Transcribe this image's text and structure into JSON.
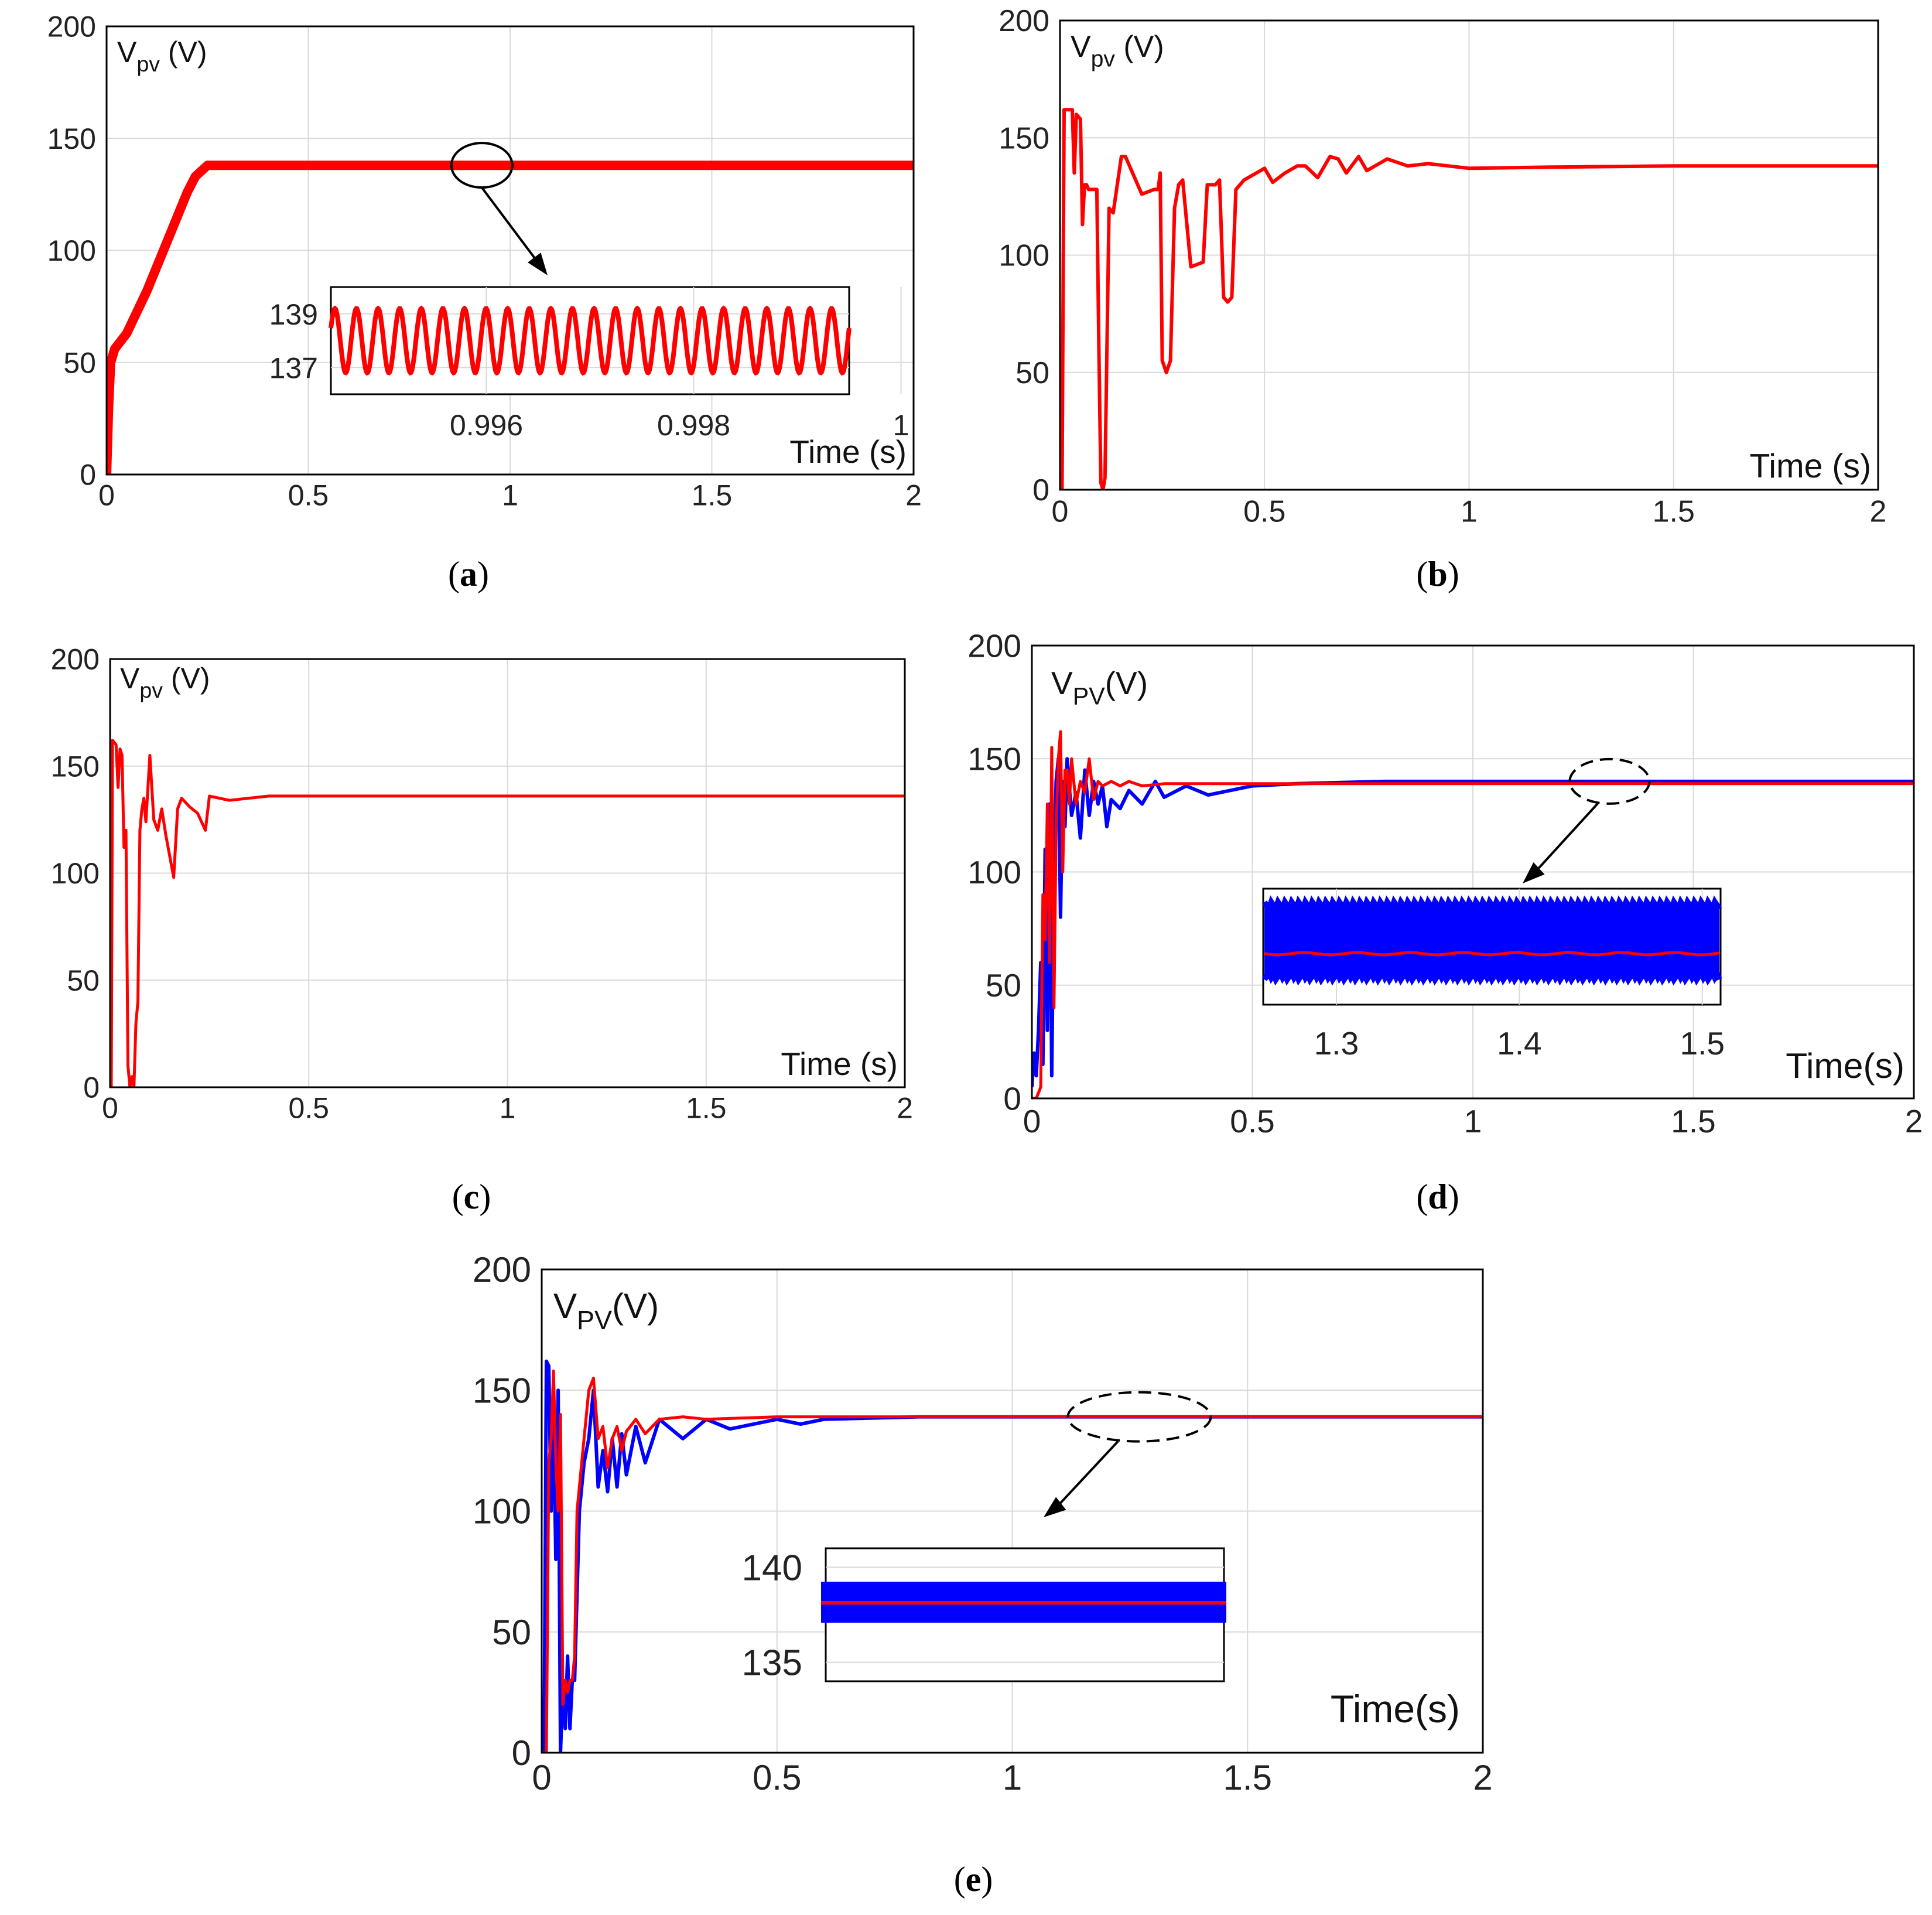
{
  "figure": {
    "colors": {
      "primary": "#ff0000",
      "secondary": "#0000ff",
      "grid": "#d9d9d9",
      "frame": "#000000"
    },
    "icons": [
      "zoom-ellipse-icon",
      "zoom-arrow-icon"
    ]
  },
  "chart_data": [
    {
      "id": "a",
      "type": "line",
      "caption": "(a)",
      "ylabel_main": "V",
      "ylabel_sub": "pv",
      "ylabel_unit": " (V)",
      "xlabel": "Time (s)",
      "xlim": [
        0,
        2
      ],
      "ylim": [
        0,
        200
      ],
      "xticks": [
        0,
        0.5,
        1,
        1.5,
        2
      ],
      "xtick_labels": [
        "0",
        "0.5",
        "1",
        "1.5",
        "2"
      ],
      "yticks": [
        0,
        50,
        100,
        150,
        200
      ],
      "ytick_labels": [
        "0",
        "50",
        "100",
        "150",
        "200"
      ],
      "grid": true,
      "series": [
        {
          "name": "Vpv",
          "color": "#ff0000",
          "x": [
            0,
            0.005,
            0.01,
            0.02,
            0.05,
            0.1,
            0.15,
            0.2,
            0.22,
            0.25,
            0.3,
            0.5,
            1.0,
            1.5,
            2.0
          ],
          "y": [
            0,
            30,
            50,
            56,
            63,
            82,
            104,
            126,
            133,
            138,
            138,
            138,
            138,
            138,
            138
          ]
        }
      ],
      "inset": {
        "xlim": [
          0.9945,
          0.9995
        ],
        "ylim": [
          136,
          140
        ],
        "xticks": [
          0.996,
          0.998,
          1
        ],
        "xtick_labels": [
          "0.996",
          "0.998",
          "1"
        ],
        "yticks": [
          137,
          139
        ],
        "ytick_labels": [
          "137",
          "139"
        ],
        "oscillation": {
          "center": 138,
          "amplitude": 1.2,
          "cycles": 24
        }
      },
      "zoom": {
        "x": 0.93,
        "y": 138
      }
    },
    {
      "id": "b",
      "type": "line",
      "caption": "(b)",
      "ylabel_main": "V",
      "ylabel_sub": "pv",
      "ylabel_unit": " (V)",
      "xlabel": "Time (s)",
      "xlim": [
        0,
        2
      ],
      "ylim": [
        0,
        200
      ],
      "xticks": [
        0,
        0.5,
        1,
        1.5,
        2
      ],
      "xtick_labels": [
        "0",
        "0.5",
        "1",
        "1.5",
        "2"
      ],
      "yticks": [
        0,
        50,
        100,
        150,
        200
      ],
      "ytick_labels": [
        "0",
        "50",
        "100",
        "150",
        "200"
      ],
      "grid": true,
      "series": [
        {
          "name": "Vpv",
          "color": "#ff0000",
          "x": [
            0,
            0.005,
            0.01,
            0.03,
            0.035,
            0.04,
            0.05,
            0.055,
            0.06,
            0.065,
            0.07,
            0.08,
            0.09,
            0.095,
            0.1,
            0.105,
            0.11,
            0.12,
            0.13,
            0.15,
            0.16,
            0.2,
            0.23,
            0.24,
            0.245,
            0.25,
            0.26,
            0.27,
            0.28,
            0.29,
            0.3,
            0.32,
            0.35,
            0.36,
            0.38,
            0.39,
            0.4,
            0.41,
            0.42,
            0.43,
            0.45,
            0.5,
            0.52,
            0.55,
            0.58,
            0.6,
            0.63,
            0.66,
            0.68,
            0.7,
            0.73,
            0.75,
            0.8,
            0.85,
            0.9,
            1.0,
            1.2,
            1.5,
            1.75,
            2.0
          ],
          "y": [
            0,
            0,
            162,
            162,
            135,
            160,
            158,
            113,
            130,
            130,
            128,
            128,
            128,
            60,
            3,
            0,
            5,
            120,
            118,
            142,
            142,
            126,
            128,
            128,
            135,
            55,
            50,
            55,
            120,
            130,
            132,
            95,
            97,
            130,
            130,
            132,
            82,
            80,
            82,
            128,
            132,
            137,
            131,
            135,
            138,
            138,
            133,
            142,
            141,
            135,
            142,
            136,
            141,
            138,
            139,
            137,
            137.5,
            138,
            138,
            138
          ]
        }
      ]
    },
    {
      "id": "c",
      "type": "line",
      "caption": "(c)",
      "ylabel_main": "V",
      "ylabel_sub": "pv",
      "ylabel_unit": " (V)",
      "xlabel": "Time (s)",
      "xlim": [
        0,
        2
      ],
      "ylim": [
        0,
        200
      ],
      "xticks": [
        0,
        0.5,
        1,
        1.5,
        2
      ],
      "xtick_labels": [
        "0",
        "0.5",
        "1",
        "1.5",
        "2"
      ],
      "yticks": [
        0,
        50,
        100,
        150,
        200
      ],
      "ytick_labels": [
        "0",
        "50",
        "100",
        "150",
        "200"
      ],
      "grid": true,
      "series": [
        {
          "name": "Vpv",
          "color": "#ff0000",
          "x": [
            0,
            0.003,
            0.006,
            0.015,
            0.02,
            0.025,
            0.03,
            0.035,
            0.04,
            0.045,
            0.05,
            0.055,
            0.06,
            0.065,
            0.07,
            0.075,
            0.08,
            0.085,
            0.09,
            0.1,
            0.11,
            0.12,
            0.13,
            0.14,
            0.15,
            0.16,
            0.17,
            0.18,
            0.2,
            0.22,
            0.24,
            0.25,
            0.3,
            0.4,
            0.5,
            0.7,
            1.0,
            1.5,
            2.0
          ],
          "y": [
            0,
            0,
            162,
            160,
            140,
            158,
            155,
            112,
            120,
            10,
            0,
            5,
            0,
            30,
            40,
            120,
            130,
            135,
            124,
            155,
            125,
            120,
            130,
            118,
            108,
            98,
            130,
            135,
            131,
            128,
            120,
            136,
            134,
            136,
            136,
            136,
            136,
            136,
            136
          ]
        }
      ]
    },
    {
      "id": "d",
      "type": "line",
      "caption": "(d)",
      "ylabel_main": "V",
      "ylabel_sub": "PV",
      "ylabel_unit": "(V)",
      "xlabel": "Time(s)",
      "xlim": [
        0,
        2
      ],
      "ylim": [
        0,
        200
      ],
      "xticks": [
        0,
        0.5,
        1,
        1.5,
        2
      ],
      "xtick_labels": [
        "0",
        "0.5",
        "1",
        "1.5",
        "2"
      ],
      "yticks": [
        0,
        50,
        100,
        150,
        200
      ],
      "ytick_labels": [
        "0",
        "50",
        "100",
        "150",
        "200"
      ],
      "grid": true,
      "series": [
        {
          "name": "Vpv (blue)",
          "color": "#0000ff",
          "x": [
            0,
            0.005,
            0.01,
            0.015,
            0.02,
            0.025,
            0.03,
            0.035,
            0.04,
            0.045,
            0.05,
            0.055,
            0.06,
            0.065,
            0.07,
            0.075,
            0.08,
            0.09,
            0.1,
            0.11,
            0.12,
            0.13,
            0.14,
            0.15,
            0.16,
            0.17,
            0.18,
            0.2,
            0.22,
            0.25,
            0.28,
            0.3,
            0.35,
            0.4,
            0.5,
            0.6,
            0.8,
            1.0,
            1.5,
            2.0
          ],
          "y": [
            5,
            20,
            10,
            30,
            60,
            15,
            110,
            30,
            130,
            10,
            100,
            140,
            150,
            80,
            140,
            120,
            150,
            125,
            135,
            115,
            145,
            125,
            140,
            130,
            138,
            120,
            132,
            128,
            136,
            130,
            140,
            133,
            138,
            134,
            138,
            139,
            140,
            140,
            140,
            140
          ]
        },
        {
          "name": "Vpv (red)",
          "color": "#ff0000",
          "x": [
            0,
            0.01,
            0.02,
            0.025,
            0.03,
            0.035,
            0.04,
            0.045,
            0.05,
            0.055,
            0.06,
            0.065,
            0.07,
            0.075,
            0.08,
            0.085,
            0.09,
            0.1,
            0.11,
            0.12,
            0.13,
            0.14,
            0.15,
            0.16,
            0.18,
            0.2,
            0.22,
            0.25,
            0.3,
            0.35,
            0.5,
            0.7,
            1.0,
            1.5,
            2.0
          ],
          "y": [
            0,
            0,
            5,
            90,
            70,
            130,
            60,
            155,
            40,
            120,
            150,
            162,
            100,
            145,
            145,
            130,
            150,
            130,
            140,
            135,
            150,
            132,
            140,
            138,
            140,
            138,
            140,
            138,
            139,
            139,
            139,
            139,
            139,
            139,
            139
          ]
        }
      ],
      "inset": {
        "xlim": [
          1.26,
          1.51
        ],
        "xticks": [
          1.3,
          1.4,
          1.5
        ],
        "xtick_labels": [
          "1.3",
          "1.4",
          "1.5"
        ]
      },
      "zoom": {
        "x": 1.31,
        "y": 140
      }
    },
    {
      "id": "e",
      "type": "line",
      "caption": "(e)",
      "ylabel_main": "V",
      "ylabel_sub": "PV",
      "ylabel_unit": "(V)",
      "xlabel": "Time(s)",
      "xlim": [
        0,
        2
      ],
      "ylim": [
        0,
        200
      ],
      "xticks": [
        0,
        0.5,
        1,
        1.5,
        2
      ],
      "xtick_labels": [
        "0",
        "0.5",
        "1",
        "1.5",
        "2"
      ],
      "yticks": [
        0,
        50,
        100,
        150,
        200
      ],
      "ytick_labels": [
        "0",
        "50",
        "100",
        "150",
        "200"
      ],
      "grid": true,
      "series": [
        {
          "name": "Vpv (blue)",
          "color": "#0000ff",
          "x": [
            0,
            0.005,
            0.01,
            0.015,
            0.02,
            0.025,
            0.03,
            0.035,
            0.04,
            0.045,
            0.05,
            0.055,
            0.06,
            0.065,
            0.07,
            0.08,
            0.09,
            0.1,
            0.11,
            0.12,
            0.13,
            0.14,
            0.15,
            0.16,
            0.17,
            0.18,
            0.2,
            0.22,
            0.25,
            0.3,
            0.35,
            0.4,
            0.5,
            0.55,
            0.6,
            0.8,
            1.0,
            1.5,
            2.0
          ],
          "y": [
            0,
            0,
            162,
            160,
            100,
            140,
            80,
            150,
            0,
            30,
            10,
            40,
            10,
            30,
            30,
            100,
            120,
            130,
            150,
            110,
            125,
            108,
            130,
            110,
            132,
            115,
            135,
            120,
            138,
            130,
            138,
            134,
            138,
            136,
            138,
            139,
            139,
            139,
            139
          ]
        },
        {
          "name": "Vpv (red)",
          "color": "#ff0000",
          "x": [
            0,
            0.01,
            0.015,
            0.02,
            0.025,
            0.03,
            0.035,
            0.04,
            0.045,
            0.05,
            0.055,
            0.06,
            0.065,
            0.07,
            0.075,
            0.08,
            0.09,
            0.1,
            0.11,
            0.12,
            0.13,
            0.14,
            0.15,
            0.16,
            0.17,
            0.18,
            0.2,
            0.22,
            0.25,
            0.3,
            0.35,
            0.5,
            0.7,
            1.0,
            1.5,
            2.0
          ],
          "y": [
            0,
            0,
            120,
            130,
            158,
            120,
            100,
            140,
            20,
            30,
            25,
            30,
            30,
            40,
            100,
            110,
            130,
            150,
            155,
            130,
            135,
            118,
            130,
            135,
            125,
            133,
            138,
            132,
            138,
            139,
            138,
            139,
            139,
            139,
            139,
            139
          ]
        }
      ],
      "inset": {
        "ylim": [
          134,
          141
        ],
        "yticks": [
          135,
          140
        ],
        "ytick_labels": [
          "135",
          "140"
        ]
      },
      "zoom": {
        "x": 1.27,
        "y": 139
      }
    }
  ]
}
